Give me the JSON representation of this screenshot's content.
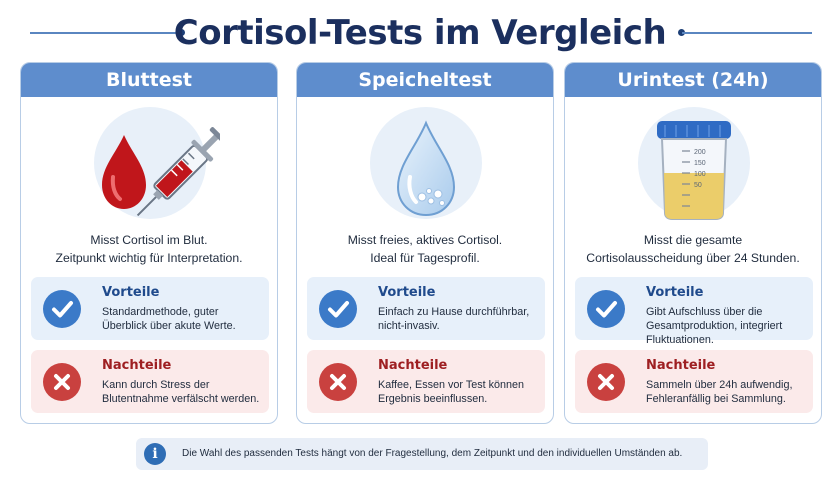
{
  "title": "Cortisol-Tests im Vergleich",
  "colors": {
    "header_blue": "#5e8dcd",
    "title_navy": "#1b2f5e",
    "pro_blue": "#3b7ac8",
    "con_red": "#c9413f",
    "pro_bg": "#e7f0fa",
    "con_bg": "#fbeaea"
  },
  "cards": [
    {
      "title": "Bluttest",
      "icon": "blood-drop-syringe-icon",
      "desc": [
        "Misst Cortisol im Blut.",
        "Zeitpunkt wichtig für Interpretation."
      ],
      "pro": {
        "title": "Vorteile",
        "lines": [
          "Standardmethode, guter",
          "Überblick über akute Werte."
        ]
      },
      "con": {
        "title": "Nachteile",
        "lines": [
          "Kann durch Stress der",
          "Blutentnahme verfälscht werden."
        ]
      }
    },
    {
      "title": "Speicheltest",
      "icon": "saliva-drop-icon",
      "desc": [
        "Misst freies, aktives Cortisol.",
        "Ideal für Tagesprofil."
      ],
      "pro": {
        "title": "Vorteile",
        "lines": [
          "Einfach zu Hause durchführbar,",
          "nicht-invasiv."
        ]
      },
      "con": {
        "title": "Nachteile",
        "lines": [
          "Kaffee, Essen vor Test können",
          "Ergebnis beeinflussen."
        ]
      }
    },
    {
      "title": "Urintest (24h)",
      "icon": "urine-container-icon",
      "desc": [
        "Misst die gesamte",
        "Cortisolausscheidung über 24 Stunden."
      ],
      "pro": {
        "title": "Vorteile",
        "lines": [
          "Gibt Aufschluss über die",
          "Gesamtproduktion, integriert",
          "Fluktuationen."
        ]
      },
      "con": {
        "title": "Nachteile",
        "lines": [
          "Sammeln über 24h aufwendig,",
          "Fehleranfällig bei Sammlung."
        ]
      }
    }
  ],
  "container_scale": [
    "200",
    "150",
    "100",
    "50"
  ],
  "footer": {
    "icon": "info-icon",
    "text": "Die Wahl des passenden Tests hängt von der Fragestellung, dem Zeitpunkt und den individuellen Umständen ab."
  }
}
